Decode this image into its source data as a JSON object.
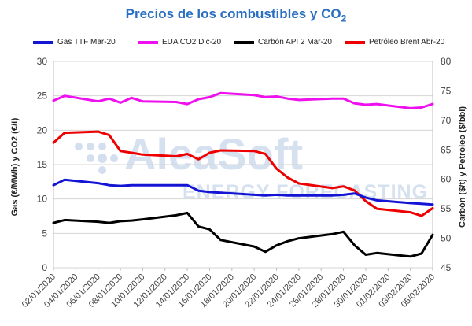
{
  "chart_data": {
    "type": "line",
    "title_main": "Precios de los combustibles y CO",
    "title_sub": "2",
    "ylabel_left": "Gas (€/MWh) y CO2 (€/t)",
    "ylabel_right": "Carbón ($/t) y Petróleo ($/bbl)",
    "ylim_left": [
      0,
      30
    ],
    "ylim_right": [
      45,
      80
    ],
    "yticks_left": [
      0,
      5,
      10,
      15,
      20,
      25,
      30
    ],
    "yticks_right": [
      45,
      50,
      55,
      60,
      65,
      70,
      75,
      80
    ],
    "x": [
      "02/01/2020",
      "03/01/2020",
      "06/01/2020",
      "07/01/2020",
      "08/01/2020",
      "09/01/2020",
      "10/01/2020",
      "13/01/2020",
      "14/01/2020",
      "15/01/2020",
      "16/01/2020",
      "17/01/2020",
      "20/01/2020",
      "21/01/2020",
      "22/01/2020",
      "23/01/2020",
      "24/01/2020",
      "27/01/2020",
      "28/01/2020",
      "29/01/2020",
      "30/01/2020",
      "31/01/2020",
      "03/02/2020",
      "04/02/2020",
      "05/02/2020"
    ],
    "xtick_labels": [
      "02/01/2020",
      "04/01/2020",
      "06/01/2020",
      "08/01/2020",
      "10/01/2020",
      "12/01/2020",
      "14/01/2020",
      "16/01/2020",
      "18/01/2020",
      "20/01/2020",
      "22/01/2020",
      "24/01/2020",
      "26/01/2020",
      "28/01/2020",
      "30/01/2020",
      "01/02/2020",
      "03/02/2020",
      "05/02/2020"
    ],
    "series": [
      {
        "name": "Gas TTF Mar-20",
        "axis": "left",
        "color": "#1414d4",
        "values": [
          12.0,
          12.8,
          12.3,
          12.0,
          11.9,
          12.0,
          12.0,
          12.0,
          12.0,
          11.2,
          11.0,
          10.9,
          10.6,
          10.5,
          10.6,
          10.5,
          10.5,
          10.5,
          10.6,
          10.8,
          10.2,
          9.8,
          9.4,
          9.3,
          9.2
        ]
      },
      {
        "name": "EUA CO2 Dic-20",
        "axis": "left",
        "color": "#ee10ee",
        "values": [
          24.3,
          25.0,
          24.2,
          24.6,
          24.0,
          24.7,
          24.2,
          24.1,
          23.8,
          24.5,
          24.8,
          25.4,
          25.1,
          24.8,
          24.9,
          24.6,
          24.4,
          24.6,
          24.6,
          23.9,
          23.7,
          23.8,
          23.2,
          23.3,
          23.8
        ]
      },
      {
        "name": "Carbón API 2 Mar-20",
        "axis": "right",
        "color": "#000000",
        "values": [
          52.6,
          53.1,
          52.8,
          52.6,
          52.9,
          53.0,
          53.2,
          53.9,
          54.3,
          52.0,
          51.5,
          49.7,
          48.6,
          47.7,
          48.8,
          49.5,
          50.0,
          50.7,
          51.1,
          48.8,
          47.2,
          47.5,
          46.9,
          47.4,
          50.6
        ]
      },
      {
        "name": "Petróleo Brent Abr-20",
        "axis": "right",
        "color": "#ee0000",
        "values": [
          66.2,
          67.9,
          68.1,
          67.5,
          64.8,
          64.5,
          64.2,
          63.9,
          64.3,
          63.4,
          64.5,
          64.9,
          64.8,
          64.3,
          61.8,
          60.3,
          59.3,
          58.5,
          58.8,
          58.1,
          56.3,
          55.0,
          54.4,
          53.8,
          55.1
        ]
      }
    ],
    "legend_position": "top",
    "grid": "horizontal"
  },
  "watermark": {
    "text": "AleaSoft",
    "subtext": "ENERGY FORECASTING"
  }
}
